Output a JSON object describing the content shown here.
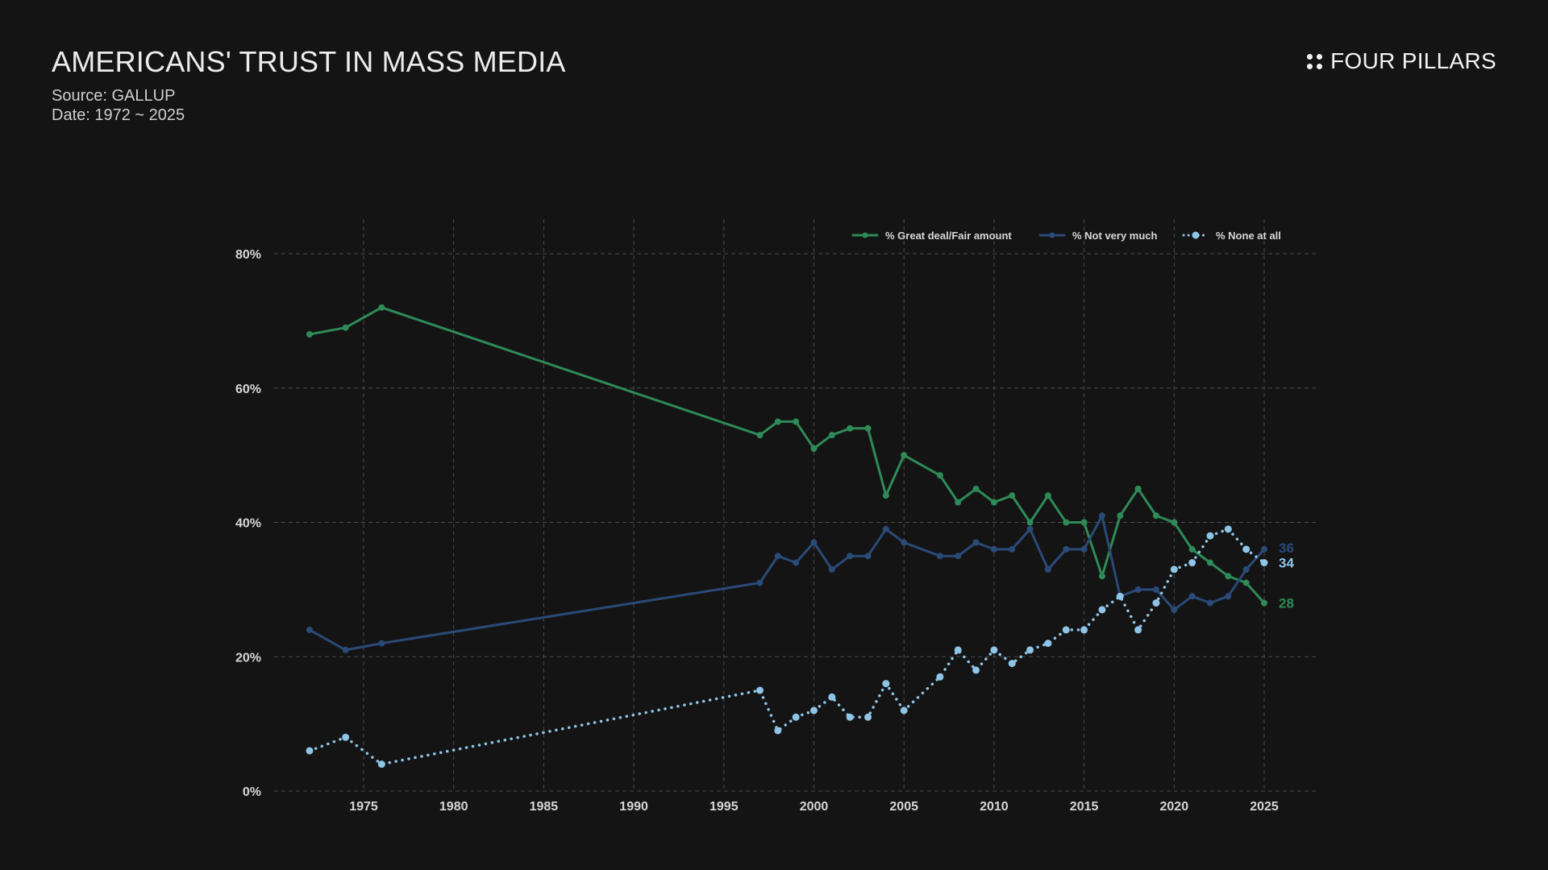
{
  "header": {
    "title": "AMERICANS' TRUST IN MASS MEDIA",
    "source": "Source: GALLUP",
    "date": "Date: 1972 ~ 2025",
    "brand": "FOUR PILLARS",
    "brand_icon": "four-dots-icon"
  },
  "chart_data": {
    "type": "line",
    "title": "AMERICANS' TRUST IN MASS MEDIA",
    "xlabel": "",
    "ylabel": "",
    "xlim": [
      1970,
      2028
    ],
    "ylim": [
      0,
      80
    ],
    "x_ticks": [
      1975,
      1980,
      1985,
      1990,
      1995,
      2000,
      2005,
      2010,
      2015,
      2020,
      2025
    ],
    "y_ticks": [
      0,
      20,
      40,
      60,
      80
    ],
    "y_tick_labels": [
      "0%",
      "20%",
      "40%",
      "60%",
      "80%"
    ],
    "grid": true,
    "legend_position": "top-right",
    "x": [
      1972,
      1974,
      1976,
      1997,
      1998,
      1999,
      2000,
      2001,
      2002,
      2003,
      2004,
      2005,
      2007,
      2008,
      2009,
      2010,
      2011,
      2012,
      2013,
      2014,
      2015,
      2016,
      2017,
      2018,
      2019,
      2020,
      2021,
      2022,
      2023,
      2024,
      2025
    ],
    "series": [
      {
        "name": "% Great deal/Fair amount",
        "color": "#2e8b57",
        "style": "solid",
        "end_label": "28",
        "values": [
          68,
          69,
          72,
          53,
          55,
          55,
          51,
          53,
          54,
          54,
          44,
          50,
          47,
          43,
          45,
          43,
          44,
          40,
          44,
          40,
          40,
          32,
          41,
          45,
          41,
          40,
          36,
          34,
          32,
          31,
          28
        ]
      },
      {
        "name": "% Not very much",
        "color": "#2a4a78",
        "style": "solid",
        "end_label": "36",
        "values": [
          24,
          21,
          22,
          31,
          35,
          34,
          37,
          33,
          35,
          35,
          39,
          37,
          35,
          35,
          37,
          36,
          36,
          39,
          33,
          36,
          36,
          41,
          29,
          30,
          30,
          27,
          29,
          28,
          29,
          33,
          36
        ]
      },
      {
        "name": "% None at all",
        "color": "#8ec4e6",
        "style": "dotted",
        "end_label": "34",
        "values": [
          6,
          8,
          4,
          15,
          9,
          11,
          12,
          14,
          11,
          11,
          16,
          12,
          17,
          21,
          18,
          21,
          19,
          21,
          22,
          24,
          24,
          27,
          29,
          24,
          28,
          33,
          34,
          38,
          39,
          36,
          34
        ]
      }
    ]
  }
}
